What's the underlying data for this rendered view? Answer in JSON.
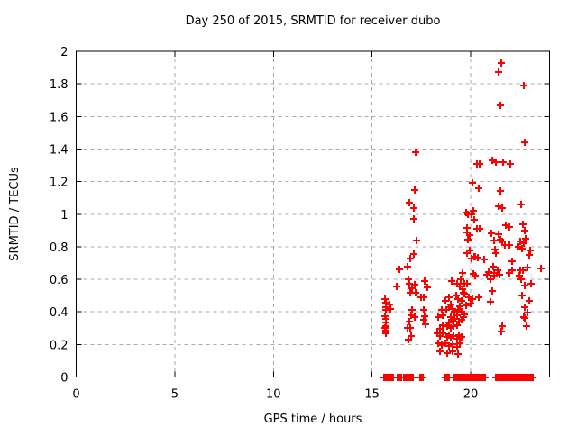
{
  "chart": {
    "title": "Day 250 of 2015, SRMTID for receiver dubo",
    "xlabel": "GPS time / hours",
    "ylabel": "SRMTID / TECUs"
  },
  "colors": {
    "marker": "#ff0000",
    "axis": "#000000",
    "grid": "#aaaaaa",
    "background": "#ffffff"
  },
  "chart_data": {
    "type": "scatter",
    "title": "Day 250 of 2015, SRMTID for receiver dubo",
    "xlabel": "GPS time / hours",
    "ylabel": "SRMTID / TECUs",
    "xlim": [
      0,
      24
    ],
    "ylim": [
      0,
      2
    ],
    "xtick_values": [
      0,
      5,
      10,
      15,
      20
    ],
    "xtick_labels": [
      "0",
      "5",
      "10",
      "15",
      "20"
    ],
    "ytick_values": [
      0,
      0.2,
      0.4,
      0.6,
      0.8,
      1,
      1.2,
      1.4,
      1.6,
      1.8,
      2
    ],
    "ytick_labels": [
      "0",
      "0.2",
      "0.4",
      "0.6",
      "0.8",
      "1",
      "1.2",
      "1.4",
      "1.6",
      "1.8",
      "2"
    ],
    "grid": true,
    "grid_style": "dashed",
    "legend": "none",
    "marker": "plus",
    "marker_color": "#ff0000",
    "series": [
      {
        "name": "SRMTID",
        "points": [
          [
            15.65,
            0.48
          ],
          [
            15.7,
            0.455
          ],
          [
            15.68,
            0.43
          ],
          [
            15.72,
            0.41
          ],
          [
            15.66,
            0.375
          ],
          [
            15.7,
            0.355
          ],
          [
            15.68,
            0.335
          ],
          [
            15.72,
            0.315
          ],
          [
            15.66,
            0.3
          ],
          [
            15.7,
            0.285
          ],
          [
            15.68,
            0.27
          ],
          [
            15.9,
            0.445
          ],
          [
            15.95,
            0.42
          ],
          [
            16.25,
            0.555
          ],
          [
            16.4,
            0.66
          ],
          [
            16.8,
            0.68
          ],
          [
            16.95,
            0.73
          ],
          [
            17.1,
            0.755
          ],
          [
            17.25,
            0.84
          ],
          [
            17.1,
            0.97
          ],
          [
            17.1,
            1.04
          ],
          [
            16.9,
            1.07
          ],
          [
            17.15,
            1.15
          ],
          [
            17.2,
            1.38
          ],
          [
            16.85,
            0.6
          ],
          [
            16.9,
            0.575
          ],
          [
            17.05,
            0.545
          ],
          [
            16.95,
            0.52
          ],
          [
            17.2,
            0.52
          ],
          [
            17.15,
            0.565
          ],
          [
            16.8,
            0.3
          ],
          [
            16.85,
            0.23
          ],
          [
            16.95,
            0.3
          ],
          [
            17.0,
            0.25
          ],
          [
            16.9,
            0.34
          ],
          [
            17.05,
            0.41
          ],
          [
            17.0,
            0.38
          ],
          [
            17.15,
            0.37
          ],
          [
            17.5,
            0.49
          ],
          [
            17.65,
            0.59
          ],
          [
            17.8,
            0.55
          ],
          [
            17.6,
            0.49
          ],
          [
            17.6,
            0.41
          ],
          [
            17.65,
            0.375
          ],
          [
            17.6,
            0.35
          ],
          [
            17.7,
            0.325
          ],
          [
            18.3,
            0.27
          ],
          [
            18.35,
            0.37
          ],
          [
            18.35,
            0.21
          ],
          [
            18.45,
            0.295
          ],
          [
            18.45,
            0.25
          ],
          [
            18.45,
            0.16
          ],
          [
            18.55,
            0.41
          ],
          [
            18.55,
            0.195
          ],
          [
            18.6,
            0.38
          ],
          [
            18.6,
            0.32
          ],
          [
            18.6,
            0.27
          ],
          [
            18.7,
            0.47
          ],
          [
            18.7,
            0.205
          ],
          [
            18.75,
            0.41
          ],
          [
            18.8,
            0.31
          ],
          [
            18.8,
            0.245
          ],
          [
            18.8,
            0.145
          ],
          [
            18.9,
            0.49
          ],
          [
            18.9,
            0.43
          ],
          [
            18.9,
            0.335
          ],
          [
            18.9,
            0.26
          ],
          [
            18.9,
            0.19
          ],
          [
            19.0,
            0.445
          ],
          [
            19.0,
            0.37
          ],
          [
            19.0,
            0.3
          ],
          [
            19.0,
            0.24
          ],
          [
            19.05,
            0.59
          ],
          [
            19.1,
            0.42
          ],
          [
            19.1,
            0.345
          ],
          [
            19.1,
            0.2
          ],
          [
            19.1,
            0.16
          ],
          [
            19.15,
            0.31
          ],
          [
            19.15,
            0.25
          ],
          [
            19.2,
            0.4
          ],
          [
            19.2,
            0.355
          ],
          [
            19.25,
            0.5
          ],
          [
            19.3,
            0.38
          ],
          [
            19.3,
            0.32
          ],
          [
            19.3,
            0.235
          ],
          [
            19.3,
            0.185
          ],
          [
            19.3,
            0.57
          ],
          [
            19.35,
            0.48
          ],
          [
            19.35,
            0.41
          ],
          [
            19.35,
            0.14
          ],
          [
            19.4,
            0.34
          ],
          [
            19.4,
            0.26
          ],
          [
            19.45,
            0.555
          ],
          [
            19.45,
            0.435
          ],
          [
            19.45,
            0.205
          ],
          [
            19.5,
            0.6
          ],
          [
            19.55,
            0.4
          ],
          [
            19.55,
            0.35
          ],
          [
            19.55,
            0.245
          ],
          [
            19.55,
            0.47
          ],
          [
            19.6,
            0.54
          ],
          [
            19.6,
            0.64
          ],
          [
            19.65,
            0.37
          ],
          [
            19.65,
            0.52
          ],
          [
            19.7,
            0.51
          ],
          [
            19.7,
            0.385
          ],
          [
            19.7,
            0.57
          ],
          [
            19.75,
            0.44
          ],
          [
            19.8,
            0.57
          ],
          [
            19.9,
            0.49
          ],
          [
            20.0,
            0.45
          ],
          [
            20.1,
            0.48
          ],
          [
            19.75,
            1.01
          ],
          [
            19.8,
            0.76
          ],
          [
            19.8,
            0.915
          ],
          [
            19.8,
            0.89
          ],
          [
            19.85,
            1.0
          ],
          [
            19.85,
            0.845
          ],
          [
            19.95,
            0.87
          ],
          [
            19.95,
            0.775
          ],
          [
            20.05,
            1.0
          ],
          [
            20.05,
            0.73
          ],
          [
            20.1,
            1.19
          ],
          [
            20.15,
            1.02
          ],
          [
            20.15,
            0.635
          ],
          [
            20.2,
            0.965
          ],
          [
            20.2,
            0.74
          ],
          [
            20.25,
            0.74
          ],
          [
            20.25,
            0.62
          ],
          [
            20.3,
            1.31
          ],
          [
            20.3,
            0.91
          ],
          [
            20.35,
            0.735
          ],
          [
            20.4,
            1.16
          ],
          [
            20.45,
            1.31
          ],
          [
            20.45,
            0.91
          ],
          [
            20.4,
            0.49
          ],
          [
            20.7,
            0.72
          ],
          [
            20.8,
            0.63
          ],
          [
            20.9,
            0.645
          ],
          [
            21.0,
            0.6
          ],
          [
            21.0,
            0.46
          ],
          [
            21.05,
            0.88
          ],
          [
            21.1,
            1.33
          ],
          [
            21.1,
            0.53
          ],
          [
            21.15,
            0.68
          ],
          [
            21.2,
            0.84
          ],
          [
            21.2,
            0.64
          ],
          [
            21.2,
            0.62
          ],
          [
            21.25,
            0.785
          ],
          [
            21.3,
            1.32
          ],
          [
            21.3,
            0.76
          ],
          [
            21.35,
            0.655
          ],
          [
            21.4,
            1.875
          ],
          [
            21.4,
            1.05
          ],
          [
            21.4,
            0.875
          ],
          [
            21.45,
            0.63
          ],
          [
            21.5,
            1.67
          ],
          [
            21.5,
            1.14
          ],
          [
            21.5,
            0.845
          ],
          [
            21.55,
            1.93
          ],
          [
            21.55,
            0.28
          ],
          [
            21.6,
            1.04
          ],
          [
            21.6,
            0.83
          ],
          [
            21.6,
            0.31
          ],
          [
            21.65,
            1.32
          ],
          [
            21.75,
            0.81
          ],
          [
            21.8,
            0.93
          ],
          [
            21.95,
            0.92
          ],
          [
            21.95,
            0.81
          ],
          [
            21.95,
            0.64
          ],
          [
            22.0,
            1.31
          ],
          [
            22.1,
            0.655
          ],
          [
            22.1,
            0.71
          ],
          [
            22.4,
            0.8
          ],
          [
            22.45,
            0.62
          ],
          [
            22.5,
            0.83
          ],
          [
            22.5,
            0.655
          ],
          [
            22.55,
            1.06
          ],
          [
            22.55,
            0.6
          ],
          [
            22.6,
            0.79
          ],
          [
            22.6,
            0.5
          ],
          [
            22.65,
            0.94
          ],
          [
            22.65,
            0.655
          ],
          [
            22.7,
            1.79
          ],
          [
            22.7,
            0.82
          ],
          [
            22.7,
            0.37
          ],
          [
            22.75,
            1.44
          ],
          [
            22.75,
            0.9
          ],
          [
            22.75,
            0.56
          ],
          [
            22.75,
            0.43
          ],
          [
            22.75,
            0.36
          ],
          [
            22.8,
            0.85
          ],
          [
            22.85,
            0.315
          ],
          [
            22.9,
            0.67
          ],
          [
            22.9,
            0.395
          ],
          [
            22.95,
            0.47
          ],
          [
            22.95,
            0.75
          ],
          [
            23.0,
            0.78
          ],
          [
            23.05,
            0.57
          ],
          [
            23.55,
            0.665
          ],
          [
            15.6,
            0
          ],
          [
            15.68,
            0
          ],
          [
            15.76,
            0
          ],
          [
            15.84,
            0
          ],
          [
            15.92,
            0
          ],
          [
            16.0,
            0
          ],
          [
            16.08,
            0
          ],
          [
            16.3,
            0
          ],
          [
            16.38,
            0
          ],
          [
            16.46,
            0
          ],
          [
            16.62,
            0
          ],
          [
            16.7,
            0
          ],
          [
            16.82,
            0
          ],
          [
            16.9,
            0
          ],
          [
            16.98,
            0
          ],
          [
            17.06,
            0
          ],
          [
            17.42,
            0
          ],
          [
            17.5,
            0
          ],
          [
            17.58,
            0
          ],
          [
            18.72,
            0
          ],
          [
            18.8,
            0
          ],
          [
            18.88,
            0
          ],
          [
            19.2,
            0
          ],
          [
            19.28,
            0
          ],
          [
            19.36,
            0
          ],
          [
            19.44,
            0
          ],
          [
            19.52,
            0
          ],
          [
            19.6,
            0
          ],
          [
            19.68,
            0
          ],
          [
            19.76,
            0
          ],
          [
            19.84,
            0
          ],
          [
            19.92,
            0
          ],
          [
            20.0,
            0
          ],
          [
            20.08,
            0
          ],
          [
            20.16,
            0
          ],
          [
            20.26,
            0
          ],
          [
            20.34,
            0
          ],
          [
            20.42,
            0
          ],
          [
            20.5,
            0
          ],
          [
            20.58,
            0
          ],
          [
            20.66,
            0
          ],
          [
            20.72,
            0
          ],
          [
            21.28,
            0
          ],
          [
            21.36,
            0
          ],
          [
            21.46,
            0
          ],
          [
            21.54,
            0
          ],
          [
            21.64,
            0
          ],
          [
            21.72,
            0
          ],
          [
            21.8,
            0
          ],
          [
            21.88,
            0
          ],
          [
            21.96,
            0
          ],
          [
            22.04,
            0
          ],
          [
            22.12,
            0
          ],
          [
            22.2,
            0
          ],
          [
            22.28,
            0
          ],
          [
            22.36,
            0
          ],
          [
            22.44,
            0
          ],
          [
            22.52,
            0
          ],
          [
            22.6,
            0
          ],
          [
            22.68,
            0
          ],
          [
            22.76,
            0
          ],
          [
            22.84,
            0
          ],
          [
            22.92,
            0
          ],
          [
            23.0,
            0
          ],
          [
            23.08,
            0
          ],
          [
            23.16,
            0
          ]
        ]
      }
    ]
  }
}
